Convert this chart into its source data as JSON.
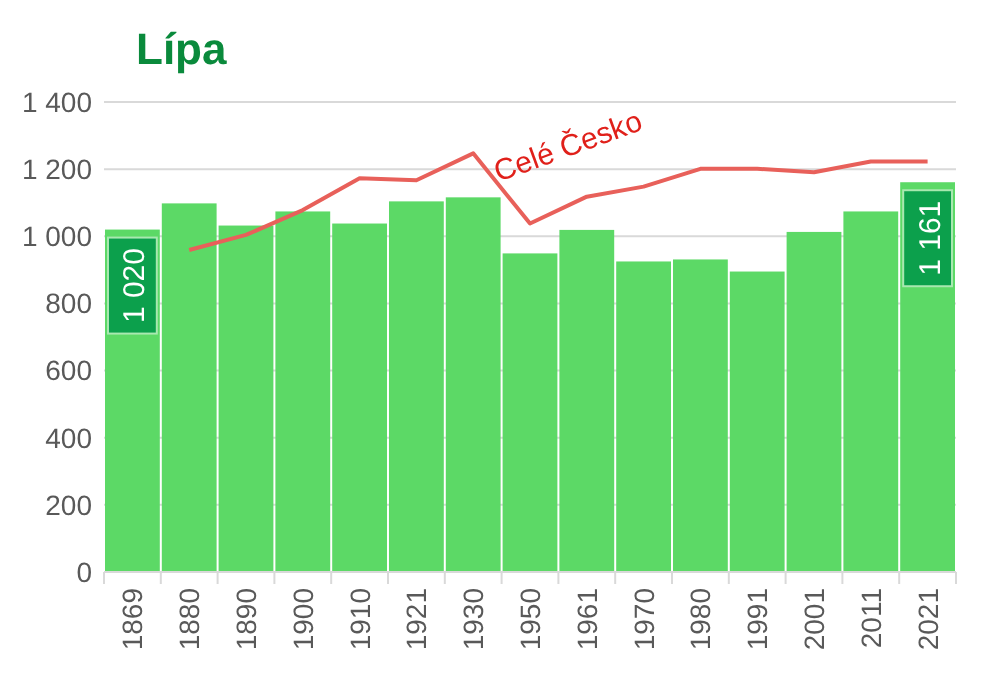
{
  "chart_data": {
    "type": "bar",
    "title": "Lípa",
    "categories": [
      "1869",
      "1880",
      "1890",
      "1900",
      "1910",
      "1921",
      "1930",
      "1950",
      "1961",
      "1970",
      "1980",
      "1991",
      "2001",
      "2011",
      "2021"
    ],
    "series": [
      {
        "color": "#5cd966",
        "values": [
          1020,
          1098,
          1032,
          1074,
          1038,
          1104,
          1116,
          949,
          1019,
          925,
          931,
          895,
          1013,
          1074,
          1161
        ],
        "value_labels": [
          "1 020",
          null,
          null,
          null,
          null,
          null,
          null,
          null,
          null,
          null,
          null,
          null,
          null,
          null,
          "1 161"
        ]
      },
      {
        "type": "line",
        "name": "Celé Česko",
        "color": "#e8605a",
        "values": [
          null,
          959,
          1004,
          1078,
          1173,
          1167,
          1247,
          1038,
          1118,
          1148,
          1201,
          1201,
          1191,
          1223,
          1223
        ]
      }
    ],
    "ylim": [
      0,
      1400
    ],
    "yticks": [
      0,
      {
        "value": 200,
        "label": "200"
      },
      {
        "value": 400,
        "label": "400"
      },
      {
        "value": 600,
        "label": "600"
      },
      {
        "value": 800,
        "label": "800"
      },
      {
        "value": 1000,
        "label": "1 000"
      },
      {
        "value": 1200,
        "label": "1 200"
      },
      {
        "value": 1400,
        "label": "1 400"
      }
    ],
    "grid": "y"
  }
}
